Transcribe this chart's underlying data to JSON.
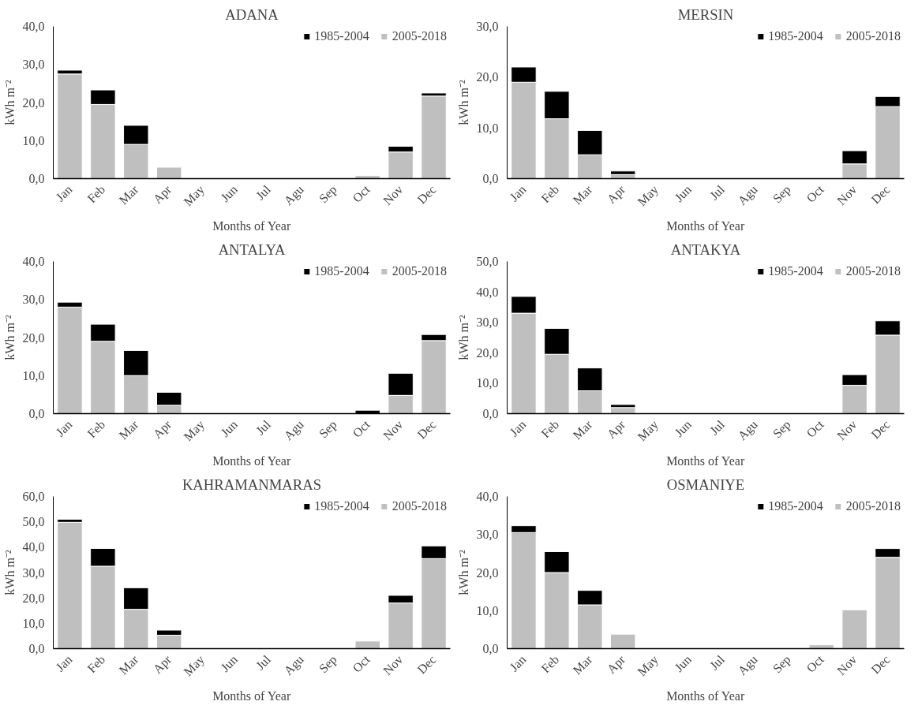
{
  "chart_data": [
    {
      "type": "bar",
      "title": "ADANA",
      "xlabel": "Months of Year",
      "ylabel": "kWh m⁻²",
      "stacked": true,
      "legend": "top right",
      "categories": [
        "Jan",
        "Feb",
        "Mar",
        "Apr",
        "May",
        "Jun",
        "Jul",
        "Agu",
        "Sep",
        "Oct",
        "Nov",
        "Dec"
      ],
      "ylim": [
        0,
        40
      ],
      "yticks": [
        {
          "value": 0,
          "label": "0,0"
        },
        {
          "value": 10,
          "label": "10,0"
        },
        {
          "value": 20,
          "label": "20,0"
        },
        {
          "value": 30,
          "label": "30,0"
        },
        {
          "value": 40,
          "label": "40,0"
        }
      ],
      "series": [
        {
          "name": "2005-2018",
          "color": "#bfbfbf",
          "values": [
            27.5,
            19.5,
            9,
            3,
            null,
            null,
            null,
            null,
            null,
            0.8,
            7,
            21.7
          ]
        },
        {
          "name": "1985-2004",
          "color": "#000000",
          "values": [
            1.0,
            3.8,
            5,
            null,
            null,
            null,
            null,
            null,
            null,
            null,
            1.5,
            0.8
          ]
        }
      ]
    },
    {
      "type": "bar",
      "title": "MERSIN",
      "xlabel": "Months of Year",
      "ylabel": "kWh m⁻²",
      "stacked": true,
      "legend": "top right",
      "categories": [
        "Jan",
        "Feb",
        "Mar",
        "Apr",
        "May",
        "Jun",
        "Jul",
        "Agu",
        "Sep",
        "Oct",
        "Nov",
        "Dec"
      ],
      "ylim": [
        0,
        30
      ],
      "yticks": [
        {
          "value": 0,
          "label": "0,0"
        },
        {
          "value": 10,
          "label": "10,0"
        },
        {
          "value": 20,
          "label": "20,0"
        },
        {
          "value": 30,
          "label": "30,0"
        }
      ],
      "series": [
        {
          "name": "2005-2018",
          "color": "#bfbfbf",
          "values": [
            19,
            11.8,
            4.7,
            0.8,
            null,
            null,
            null,
            null,
            null,
            null,
            2.9,
            14.2
          ]
        },
        {
          "name": "1985-2004",
          "color": "#000000",
          "values": [
            3,
            5.4,
            4.8,
            0.7,
            null,
            null,
            null,
            null,
            null,
            null,
            2.6,
            2.0
          ]
        }
      ]
    },
    {
      "type": "bar",
      "title": "ANTALYA",
      "xlabel": "Months of Year",
      "ylabel": "kWh m⁻²",
      "stacked": true,
      "legend": "top right",
      "categories": [
        "Jan",
        "Feb",
        "Mar",
        "Apr",
        "May",
        "Jun",
        "Jul",
        "Agu",
        "Sep",
        "Oct",
        "Nov",
        "Dec"
      ],
      "ylim": [
        0,
        40
      ],
      "yticks": [
        {
          "value": 0,
          "label": "0,0"
        },
        {
          "value": 10,
          "label": "10,0"
        },
        {
          "value": 20,
          "label": "20,0"
        },
        {
          "value": 30,
          "label": "30,0"
        },
        {
          "value": 40,
          "label": "40,0"
        }
      ],
      "series": [
        {
          "name": "2005-2018",
          "color": "#bfbfbf",
          "values": [
            28,
            19,
            10,
            2.2,
            null,
            null,
            null,
            null,
            null,
            null,
            4.8,
            19.2
          ]
        },
        {
          "name": "1985-2004",
          "color": "#000000",
          "values": [
            1.3,
            4.5,
            6.6,
            3.4,
            null,
            null,
            null,
            null,
            null,
            0.9,
            5.8,
            1.6
          ]
        }
      ]
    },
    {
      "type": "bar",
      "title": "ANTAKYA",
      "xlabel": "Months of Year",
      "ylabel": "kWh m⁻²",
      "stacked": true,
      "legend": "top right",
      "categories": [
        "Jan",
        "Feb",
        "Mar",
        "Apr",
        "May",
        "Jun",
        "Jul",
        "Agu",
        "Sep",
        "Oct",
        "Nov",
        "Dec"
      ],
      "ylim": [
        0,
        50
      ],
      "yticks": [
        {
          "value": 0,
          "label": "0,0"
        },
        {
          "value": 10,
          "label": "10,0"
        },
        {
          "value": 20,
          "label": "20,0"
        },
        {
          "value": 30,
          "label": "30,0"
        },
        {
          "value": 40,
          "label": "40,0"
        },
        {
          "value": 50,
          "label": "50,0"
        }
      ],
      "series": [
        {
          "name": "2005-2018",
          "color": "#bfbfbf",
          "values": [
            33,
            19.5,
            7.5,
            2,
            null,
            null,
            null,
            null,
            null,
            0.3,
            9.3,
            25.8
          ]
        },
        {
          "name": "1985-2004",
          "color": "#000000",
          "values": [
            5.5,
            8.5,
            7.5,
            1,
            null,
            null,
            null,
            null,
            null,
            null,
            3.5,
            4.7
          ]
        }
      ]
    },
    {
      "type": "bar",
      "title": "KAHRAMANMARAS",
      "xlabel": "Months of Year",
      "ylabel": "kWh m⁻²",
      "stacked": true,
      "legend": "top right",
      "categories": [
        "Jan",
        "Feb",
        "Mar",
        "Apr",
        "May",
        "Jun",
        "Jul",
        "Agu",
        "Sep",
        "Oct",
        "Nov",
        "Dec"
      ],
      "ylim": [
        0,
        60
      ],
      "yticks": [
        {
          "value": 0,
          "label": "0,0"
        },
        {
          "value": 10,
          "label": "10,0"
        },
        {
          "value": 20,
          "label": "20,0"
        },
        {
          "value": 30,
          "label": "30,0"
        },
        {
          "value": 40,
          "label": "40,0"
        },
        {
          "value": 50,
          "label": "50,0"
        },
        {
          "value": 60,
          "label": "60,0"
        }
      ],
      "series": [
        {
          "name": "2005-2018",
          "color": "#bfbfbf",
          "values": [
            49.8,
            32.5,
            15.5,
            5.3,
            null,
            null,
            null,
            null,
            null,
            3,
            18,
            35.5
          ]
        },
        {
          "name": "1985-2004",
          "color": "#000000",
          "values": [
            1.2,
            7,
            8.5,
            2,
            null,
            null,
            null,
            null,
            null,
            null,
            3,
            5
          ]
        }
      ]
    },
    {
      "type": "bar",
      "title": "OSMANIYE",
      "xlabel": "Months of Year",
      "ylabel": "kWh m⁻²",
      "stacked": true,
      "legend": "top right",
      "categories": [
        "Jan",
        "Feb",
        "Mar",
        "Apr",
        "May",
        "Jun",
        "Jul",
        "Agu",
        "Sep",
        "Oct",
        "Nov",
        "Dec"
      ],
      "ylim": [
        0,
        40
      ],
      "yticks": [
        {
          "value": 0,
          "label": "0,0"
        },
        {
          "value": 10,
          "label": "10,0"
        },
        {
          "value": 20,
          "label": "20,0"
        },
        {
          "value": 30,
          "label": "30,0"
        },
        {
          "value": 40,
          "label": "40,0"
        }
      ],
      "series": [
        {
          "name": "2005-2018",
          "color": "#bfbfbf",
          "values": [
            30.5,
            20,
            11.5,
            3.8,
            null,
            null,
            null,
            null,
            null,
            1,
            10.2,
            24
          ]
        },
        {
          "name": "1985-2004",
          "color": "#000000",
          "values": [
            1.8,
            5.5,
            3.8,
            null,
            null,
            null,
            null,
            null,
            null,
            null,
            null,
            2.3
          ]
        }
      ]
    }
  ]
}
